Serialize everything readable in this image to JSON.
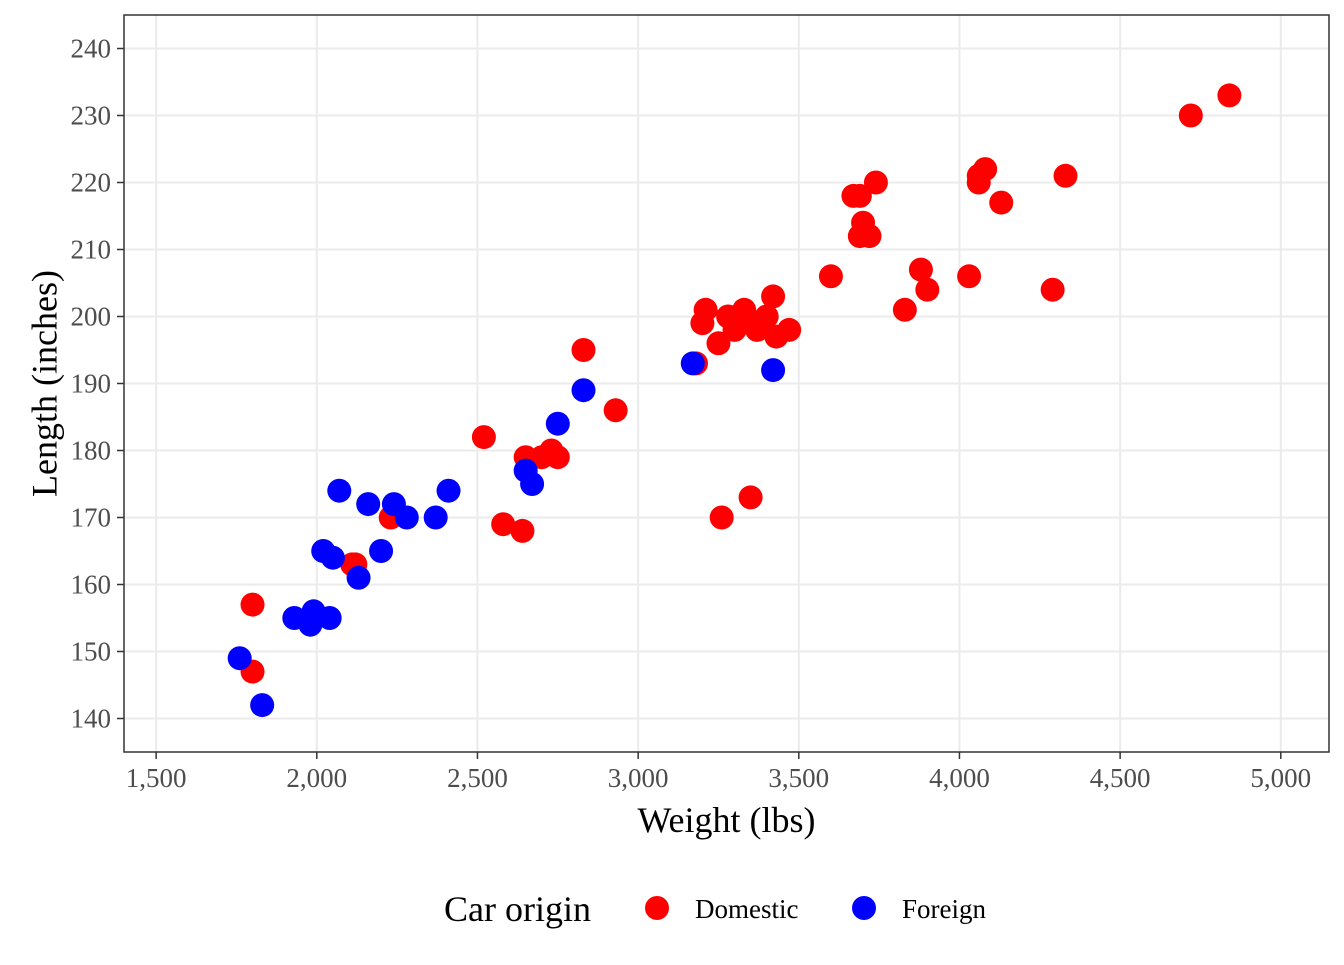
{
  "chart_data": {
    "type": "scatter",
    "xlabel": "Weight (lbs)",
    "ylabel": "Length (inches)",
    "xlim": [
      1400,
      5150
    ],
    "ylim": [
      135,
      245
    ],
    "xticks": [
      1500,
      2000,
      2500,
      3000,
      3500,
      4000,
      4500,
      5000
    ],
    "xtick_labels": [
      "1,500",
      "2,000",
      "2,500",
      "3,000",
      "3,500",
      "4,000",
      "4,500",
      "5,000"
    ],
    "yticks": [
      140,
      150,
      160,
      170,
      180,
      190,
      200,
      210,
      220,
      230,
      240
    ],
    "ytick_labels": [
      "140",
      "150",
      "160",
      "170",
      "180",
      "190",
      "200",
      "210",
      "220",
      "230",
      "240"
    ],
    "grid": true,
    "legend": {
      "title": "Car origin",
      "position": "bottom",
      "entries": [
        "Domestic",
        "Foreign"
      ]
    },
    "series": [
      {
        "name": "Domestic",
        "color": "#ff0000",
        "points": [
          [
            1800,
            157
          ],
          [
            1800,
            147
          ],
          [
            2110,
            163
          ],
          [
            2120,
            163
          ],
          [
            2230,
            170
          ],
          [
            2520,
            182
          ],
          [
            2580,
            169
          ],
          [
            2640,
            168
          ],
          [
            2650,
            179
          ],
          [
            2700,
            179
          ],
          [
            2730,
            180
          ],
          [
            2750,
            179
          ],
          [
            2830,
            195
          ],
          [
            2930,
            186
          ],
          [
            3180,
            193
          ],
          [
            3200,
            199
          ],
          [
            3210,
            201
          ],
          [
            3250,
            196
          ],
          [
            3260,
            170
          ],
          [
            3280,
            200
          ],
          [
            3300,
            198
          ],
          [
            3330,
            201
          ],
          [
            3350,
            173
          ],
          [
            3360,
            199
          ],
          [
            3370,
            198
          ],
          [
            3400,
            200
          ],
          [
            3420,
            203
          ],
          [
            3430,
            197
          ],
          [
            3470,
            198
          ],
          [
            3600,
            206
          ],
          [
            3670,
            218
          ],
          [
            3690,
            218
          ],
          [
            3690,
            212
          ],
          [
            3700,
            214
          ],
          [
            3720,
            212
          ],
          [
            3740,
            220
          ],
          [
            3830,
            201
          ],
          [
            3880,
            207
          ],
          [
            3900,
            204
          ],
          [
            4030,
            206
          ],
          [
            4060,
            221
          ],
          [
            4060,
            220
          ],
          [
            4080,
            222
          ],
          [
            4130,
            217
          ],
          [
            4290,
            204
          ],
          [
            4330,
            221
          ],
          [
            4720,
            230
          ],
          [
            4840,
            233
          ]
        ]
      },
      {
        "name": "Foreign",
        "color": "#0000ff",
        "points": [
          [
            1760,
            149
          ],
          [
            1830,
            142
          ],
          [
            1930,
            155
          ],
          [
            1980,
            154
          ],
          [
            1990,
            156
          ],
          [
            2020,
            165
          ],
          [
            2040,
            155
          ],
          [
            2050,
            164
          ],
          [
            2070,
            174
          ],
          [
            2130,
            161
          ],
          [
            2160,
            172
          ],
          [
            2200,
            165
          ],
          [
            2240,
            172
          ],
          [
            2280,
            170
          ],
          [
            2370,
            170
          ],
          [
            2410,
            174
          ],
          [
            2650,
            177
          ],
          [
            2670,
            175
          ],
          [
            2750,
            184
          ],
          [
            2830,
            189
          ],
          [
            3170,
            193
          ],
          [
            3420,
            192
          ]
        ]
      }
    ]
  }
}
